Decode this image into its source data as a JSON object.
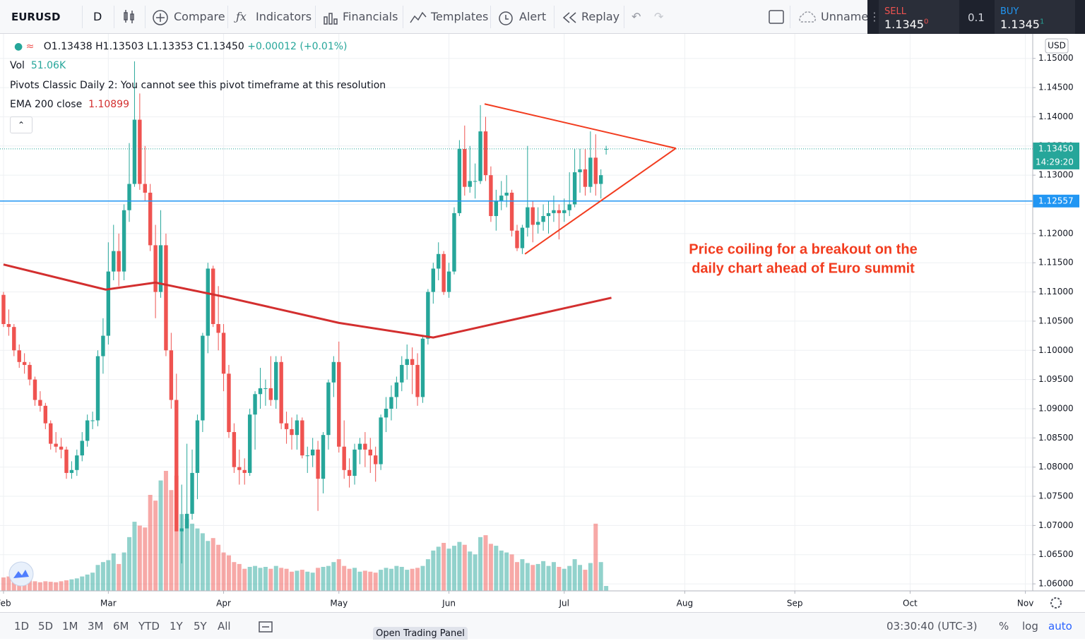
{
  "toolbar": {
    "symbol": "EURUSD",
    "interval": "D",
    "buttons": [
      "Compare",
      "Indicators",
      "Financials",
      "Templates",
      "Alert",
      "Replay"
    ],
    "layout": "Unnamed"
  },
  "trade": {
    "sell_label": "SELL",
    "sell_price": "1.1345",
    "sell_pip": "0",
    "quantity": "0.1",
    "buy_label": "BUY",
    "buy_price": "1.1345",
    "buy_pip": "1"
  },
  "legend": {
    "open": "O1.13438",
    "high": "H1.13503",
    "low": "L1.13353",
    "close": "C1.13450",
    "change": "+0.00012 (+0.01%)",
    "vol_label": "Vol",
    "vol_value": "51.06K",
    "pivots": "Pivots Classic Daily 2: You cannot see this pivot timeframe at this resolution",
    "ema_label": "EMA 200 close",
    "ema_value": "1.10899"
  },
  "bottom": {
    "ranges": [
      "1D",
      "5D",
      "1M",
      "3M",
      "6M",
      "YTD",
      "1Y",
      "5Y",
      "All"
    ],
    "clock": "03:30:40 (UTC-3)",
    "percent": "%",
    "log": "log",
    "auto": "auto",
    "trading_panel": "Open Trading Panel"
  },
  "chart_data": {
    "type": "candlestick",
    "up_color": "#26a69a",
    "down_color": "#ef5350",
    "ohlc": [
      [
        1.1095,
        1.11,
        1.104,
        1.1045
      ],
      [
        1.1045,
        1.107,
        1.1025,
        1.104
      ],
      [
        1.104,
        1.1045,
        1.099,
        1.1
      ],
      [
        1.1,
        1.101,
        1.097,
        1.098
      ],
      [
        1.098,
        1.0995,
        1.096,
        1.0975
      ],
      [
        1.0975,
        1.098,
        1.094,
        1.095
      ],
      [
        1.095,
        1.0955,
        1.0905,
        1.0915
      ],
      [
        1.0915,
        1.093,
        1.0895,
        1.0905
      ],
      [
        1.0905,
        1.091,
        1.0865,
        1.0875
      ],
      [
        1.0875,
        1.088,
        1.083,
        1.084
      ],
      [
        1.084,
        1.086,
        1.0825,
        1.0835
      ],
      [
        1.0835,
        1.085,
        1.0815,
        1.083
      ],
      [
        1.083,
        1.0835,
        1.078,
        1.079
      ],
      [
        1.079,
        1.081,
        1.078,
        1.0795
      ],
      [
        1.0795,
        1.083,
        1.0785,
        1.082
      ],
      [
        1.082,
        1.086,
        1.081,
        1.0845
      ],
      [
        1.0845,
        1.089,
        1.0835,
        1.088
      ],
      [
        1.088,
        1.0895,
        1.0865,
        1.088
      ],
      [
        1.088,
        1.1,
        1.087,
        1.099
      ],
      [
        1.099,
        1.1055,
        1.096,
        1.1025
      ],
      [
        1.1025,
        1.1185,
        1.101,
        1.1135
      ],
      [
        1.1135,
        1.1215,
        1.112,
        1.117
      ],
      [
        1.117,
        1.12,
        1.111,
        1.1135
      ],
      [
        1.1135,
        1.125,
        1.112,
        1.124
      ],
      [
        1.124,
        1.1355,
        1.122,
        1.1285
      ],
      [
        1.1285,
        1.1495,
        1.128,
        1.1395
      ],
      [
        1.1395,
        1.144,
        1.1275,
        1.1285
      ],
      [
        1.1285,
        1.135,
        1.1255,
        1.127
      ],
      [
        1.127,
        1.1285,
        1.117,
        1.118
      ],
      [
        1.118,
        1.1215,
        1.1055,
        1.11
      ],
      [
        1.11,
        1.124,
        1.109,
        1.118
      ],
      [
        1.118,
        1.12,
        1.099,
        1.1
      ],
      [
        1.1,
        1.103,
        1.09,
        1.0915
      ],
      [
        1.0915,
        1.096,
        1.069,
        1.069
      ],
      [
        1.069,
        1.077,
        1.0635,
        1.0695
      ],
      [
        1.0695,
        1.084,
        1.0695,
        1.072
      ],
      [
        1.072,
        1.083,
        1.071,
        1.079
      ],
      [
        1.079,
        1.089,
        1.0745,
        1.088
      ],
      [
        1.088,
        1.103,
        1.086,
        1.1025
      ],
      [
        1.1025,
        1.115,
        1.0995,
        1.114
      ],
      [
        1.114,
        1.1145,
        1.104,
        1.1045
      ],
      [
        1.1045,
        1.111,
        1.1,
        1.103
      ],
      [
        1.103,
        1.1045,
        1.093,
        1.096
      ],
      [
        1.096,
        1.0975,
        1.085,
        1.086
      ],
      [
        1.086,
        1.0875,
        1.079,
        1.08
      ],
      [
        1.08,
        1.083,
        1.077,
        1.0795
      ],
      [
        1.0795,
        1.0815,
        1.077,
        1.079
      ],
      [
        1.079,
        1.09,
        1.0785,
        1.089
      ],
      [
        1.089,
        1.093,
        1.083,
        1.0925
      ],
      [
        1.0925,
        1.097,
        1.09,
        1.0935
      ],
      [
        1.0935,
        1.095,
        1.0905,
        1.0935
      ],
      [
        1.0935,
        1.099,
        1.0905,
        1.0915
      ],
      [
        1.0915,
        1.099,
        1.09,
        1.098
      ],
      [
        1.098,
        1.099,
        1.0865,
        1.0875
      ],
      [
        1.0875,
        1.0895,
        1.084,
        1.0865
      ],
      [
        1.0865,
        1.0885,
        1.083,
        1.0855
      ],
      [
        1.0855,
        1.089,
        1.083,
        1.088
      ],
      [
        1.088,
        1.0885,
        1.0815,
        1.082
      ],
      [
        1.082,
        1.0835,
        1.079,
        1.082
      ],
      [
        1.082,
        1.085,
        1.08,
        1.083
      ],
      [
        1.083,
        1.0845,
        1.0725,
        1.078
      ],
      [
        1.078,
        1.086,
        1.0755,
        1.0855
      ],
      [
        1.0855,
        1.095,
        1.083,
        1.0945
      ],
      [
        1.0945,
        1.099,
        1.092,
        1.098
      ],
      [
        1.098,
        1.1015,
        1.0825,
        1.0835
      ],
      [
        1.0835,
        1.088,
        1.078,
        1.0795
      ],
      [
        1.0795,
        1.0815,
        1.0765,
        1.0785
      ],
      [
        1.0785,
        1.084,
        1.077,
        1.083
      ],
      [
        1.083,
        1.085,
        1.0805,
        1.084
      ],
      [
        1.084,
        1.086,
        1.08,
        1.083
      ],
      [
        1.083,
        1.085,
        1.079,
        1.082
      ],
      [
        1.082,
        1.0835,
        1.0775,
        1.0805
      ],
      [
        1.0805,
        1.089,
        1.0795,
        1.0885
      ],
      [
        1.0885,
        1.092,
        1.086,
        1.09
      ],
      [
        1.09,
        1.094,
        1.088,
        1.092
      ],
      [
        1.092,
        1.0955,
        1.09,
        1.0945
      ],
      [
        1.0945,
        1.099,
        1.093,
        1.0975
      ],
      [
        1.0975,
        1.101,
        1.095,
        1.0985
      ],
      [
        1.0985,
        1.1005,
        1.0925,
        1.0975
      ],
      [
        1.0975,
        1.0995,
        1.0905,
        1.092
      ],
      [
        1.092,
        1.1025,
        1.091,
        1.102
      ],
      [
        1.102,
        1.1105,
        1.101,
        1.11
      ],
      [
        1.11,
        1.115,
        1.108,
        1.114
      ],
      [
        1.114,
        1.1185,
        1.112,
        1.1165
      ],
      [
        1.1165,
        1.117,
        1.1095,
        1.11
      ],
      [
        1.11,
        1.115,
        1.109,
        1.1135
      ],
      [
        1.1135,
        1.1245,
        1.113,
        1.1235
      ],
      [
        1.1235,
        1.136,
        1.123,
        1.1345
      ],
      [
        1.1345,
        1.1385,
        1.1265,
        1.128
      ],
      [
        1.128,
        1.135,
        1.127,
        1.129
      ],
      [
        1.129,
        1.132,
        1.126,
        1.129
      ],
      [
        1.129,
        1.142,
        1.1285,
        1.1375
      ],
      [
        1.1375,
        1.14,
        1.129,
        1.13
      ],
      [
        1.13,
        1.1315,
        1.122,
        1.123
      ],
      [
        1.123,
        1.1275,
        1.1205,
        1.1255
      ],
      [
        1.1255,
        1.129,
        1.124,
        1.1265
      ],
      [
        1.1265,
        1.13,
        1.1245,
        1.127
      ],
      [
        1.127,
        1.1275,
        1.1195,
        1.1205
      ],
      [
        1.1205,
        1.1215,
        1.117,
        1.1175
      ],
      [
        1.1175,
        1.1215,
        1.1165,
        1.121
      ],
      [
        1.121,
        1.135,
        1.1195,
        1.1245
      ],
      [
        1.1245,
        1.1255,
        1.1185,
        1.1215
      ],
      [
        1.1215,
        1.1245,
        1.12,
        1.122
      ],
      [
        1.122,
        1.125,
        1.1205,
        1.123
      ],
      [
        1.123,
        1.1255,
        1.12,
        1.1235
      ],
      [
        1.1235,
        1.1265,
        1.122,
        1.124
      ],
      [
        1.124,
        1.125,
        1.119,
        1.1235
      ],
      [
        1.1235,
        1.126,
        1.122,
        1.124
      ],
      [
        1.124,
        1.1305,
        1.123,
        1.125
      ],
      [
        1.125,
        1.1345,
        1.1245,
        1.1305
      ],
      [
        1.1305,
        1.1345,
        1.127,
        1.131
      ],
      [
        1.131,
        1.1345,
        1.1265,
        1.128
      ],
      [
        1.128,
        1.1375,
        1.127,
        1.133
      ],
      [
        1.133,
        1.137,
        1.1265,
        1.1285
      ],
      [
        1.1285,
        1.131,
        1.126,
        1.13
      ],
      [
        1.13438,
        1.13503,
        1.13353,
        1.1345
      ]
    ],
    "volume": [
      140,
      150,
      120,
      130,
      100,
      110,
      100,
      90,
      100,
      95,
      90,
      100,
      110,
      120,
      130,
      150,
      170,
      190,
      270,
      300,
      320,
      390,
      280,
      400,
      560,
      720,
      680,
      660,
      1000,
      940,
      1150,
      1250,
      1050,
      1200,
      800,
      750,
      700,
      650,
      600,
      520,
      550,
      480,
      400,
      370,
      300,
      280,
      230,
      250,
      260,
      240,
      250,
      230,
      260,
      240,
      230,
      200,
      210,
      220,
      200,
      190,
      240,
      250,
      260,
      300,
      330,
      260,
      230,
      240,
      200,
      210,
      200,
      190,
      220,
      240,
      230,
      260,
      250,
      220,
      230,
      240,
      260,
      330,
      420,
      460,
      500,
      440,
      470,
      510,
      480,
      410,
      380,
      560,
      580,
      490,
      470,
      420,
      400,
      380,
      300,
      330,
      290,
      270,
      280,
      310,
      260,
      300,
      250,
      230,
      260,
      330,
      270,
      220,
      290,
      700,
      300,
      51.06
    ],
    "ema": {
      "color": "#d32f2f",
      "x": [
        0,
        19.5,
        29,
        42,
        64,
        82,
        94,
        107,
        116
      ],
      "values": [
        1.1147,
        1.1104,
        1.1116,
        1.1092,
        1.1047,
        1.1022,
        1.1046,
        1.1072,
        1.109
      ]
    },
    "drawings": [
      {
        "color": "#f23c1f",
        "x": [
          91.8,
          128.3
        ],
        "y": [
          1.1422,
          1.1346
        ]
      },
      {
        "color": "#f23c1f",
        "x": [
          99.5,
          128.3
        ],
        "y": [
          1.1165,
          1.1346
        ]
      }
    ],
    "annotation": {
      "lines": [
        "Price coiling for a breakout on the",
        "daily chart ahead of Euro summit"
      ],
      "color": "#f23c1f"
    },
    "hlines": [
      {
        "value": 1.12557,
        "label": "1.12557",
        "color": "#2196f3"
      }
    ],
    "last_price": {
      "value": 1.1345,
      "label": "1.13450",
      "countdown": "14:29:20",
      "color": "#26a69a"
    },
    "currency": "USD",
    "xlim": [
      -0.67,
      196.4
    ],
    "ylim": [
      1.0588,
      1.1542
    ],
    "grid": true,
    "xticks": [
      {
        "value": 0,
        "label": "Feb"
      },
      {
        "value": 20,
        "label": "Mar"
      },
      {
        "value": 42,
        "label": "Apr"
      },
      {
        "value": 64,
        "label": "May"
      },
      {
        "value": 85,
        "label": "Jun"
      },
      {
        "value": 107,
        "label": "Jul"
      },
      {
        "value": 130,
        "label": "Aug"
      },
      {
        "value": 151,
        "label": "Sep"
      },
      {
        "value": 173,
        "label": "Oct"
      },
      {
        "value": 195,
        "label": "Nov"
      }
    ],
    "yticks": [
      {
        "value": 1.06,
        "label": "1.06000"
      },
      {
        "value": 1.065,
        "label": "1.06500"
      },
      {
        "value": 1.07,
        "label": "1.07000"
      },
      {
        "value": 1.075,
        "label": "1.07500"
      },
      {
        "value": 1.08,
        "label": "1.08000"
      },
      {
        "value": 1.085,
        "label": "1.08500"
      },
      {
        "value": 1.09,
        "label": "1.09000"
      },
      {
        "value": 1.095,
        "label": "1.09500"
      },
      {
        "value": 1.1,
        "label": "1.10000"
      },
      {
        "value": 1.105,
        "label": "1.10500"
      },
      {
        "value": 1.11,
        "label": "1.11000"
      },
      {
        "value": 1.115,
        "label": "1.11500"
      },
      {
        "value": 1.12,
        "label": "1.12000"
      },
      {
        "value": 1.125,
        "label": "1.12500"
      },
      {
        "value": 1.13,
        "label": "1.13000"
      },
      {
        "value": 1.135,
        "label": "1.13500"
      },
      {
        "value": 1.14,
        "label": "1.14000"
      },
      {
        "value": 1.145,
        "label": "1.14500"
      },
      {
        "value": 1.15,
        "label": "1.15000"
      }
    ]
  }
}
